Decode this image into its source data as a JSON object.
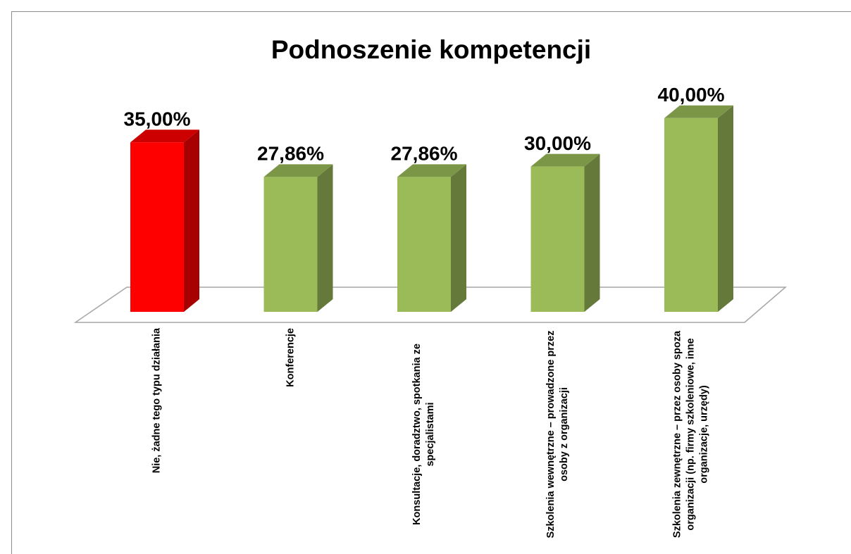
{
  "chart_data": {
    "type": "bar3d",
    "title": "Podnoszenie kompetencji",
    "categories": [
      "Nie, żadne tego typu działania",
      "Konferencje",
      "Konsultacje, doradztwo, spotkania ze specjalistami",
      "Szkolenia wewnętrzne – prowadzone przez osoby z organizacji",
      "Szkolenia zewnętrzne – przez osoby spoza organizacji (np. firmy szkoleniowe, inne organizacje, urzędy)"
    ],
    "values": [
      35,
      27.86,
      27.86,
      30,
      40
    ],
    "value_labels": [
      "35,00%",
      "27,86%",
      "27,86%",
      "30,00%",
      "40,00%"
    ],
    "colors": [
      "#ff0000",
      "#9bbb59",
      "#9bbb59",
      "#9bbb59",
      "#9bbb59"
    ]
  }
}
